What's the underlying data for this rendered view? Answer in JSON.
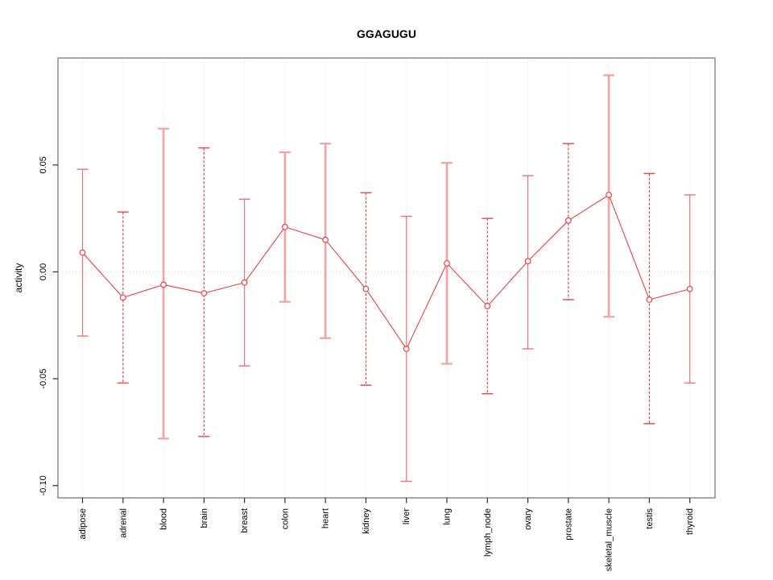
{
  "title": "GGAGUGU",
  "colors": {
    "point": "#EE4040",
    "segment": "#EE4040",
    "bar_thick": "#F8A0A0",
    "bar_thin": "#F47070",
    "bar_dashed": "#EE4444",
    "grid": "#DCDCDC",
    "zero_line": "#D6D6D6",
    "border": "#8A8A8A",
    "tick": "#2B2B2B",
    "text": "#000000"
  },
  "chart_data": {
    "type": "line",
    "subtype": "points-with-error-bars",
    "title": "GGAGUGU",
    "xlabel": "",
    "ylabel": "activity",
    "categories": [
      "adipose",
      "adrenal",
      "blood",
      "brain",
      "breast",
      "colon",
      "heart",
      "kidney",
      "liver",
      "lung",
      "lymph_node",
      "ovary",
      "prostate",
      "skeletal_muscle",
      "testis",
      "thyroid"
    ],
    "series": [
      {
        "name": "activity",
        "values": [
          0.009,
          -0.012,
          -0.006,
          -0.01,
          -0.005,
          0.021,
          0.015,
          -0.008,
          -0.036,
          0.004,
          -0.016,
          0.005,
          0.024,
          0.036,
          -0.013,
          -0.008
        ],
        "err_high": [
          0.048,
          0.028,
          0.067,
          0.058,
          0.034,
          0.056,
          0.06,
          0.037,
          0.026,
          0.051,
          0.025,
          0.045,
          0.06,
          0.092,
          0.046,
          0.036
        ],
        "err_low": [
          -0.03,
          -0.052,
          -0.078,
          -0.077,
          -0.044,
          -0.014,
          -0.031,
          -0.053,
          -0.098,
          -0.043,
          -0.057,
          -0.036,
          -0.013,
          -0.021,
          -0.071,
          -0.052
        ],
        "bar_styles": [
          "thin",
          "dashed",
          "thick",
          "dashed",
          "thin",
          "thick",
          "thick",
          "dashed",
          "thin",
          "thick",
          "dashed",
          "thin",
          "dashed",
          "thick",
          "dashed",
          "thin"
        ]
      }
    ],
    "yticks": [
      {
        "value": 0.05,
        "label": "0.05"
      },
      {
        "value": 0.0,
        "label": "0.00"
      },
      {
        "value": -0.05,
        "label": "-0.05"
      },
      {
        "value": -0.1,
        "label": "-0.10"
      }
    ],
    "ylim": [
      -0.106,
      0.1
    ],
    "grid": {
      "vertical": "dotted-per-category",
      "horizontal_zero_line": true
    },
    "legend": "none"
  }
}
